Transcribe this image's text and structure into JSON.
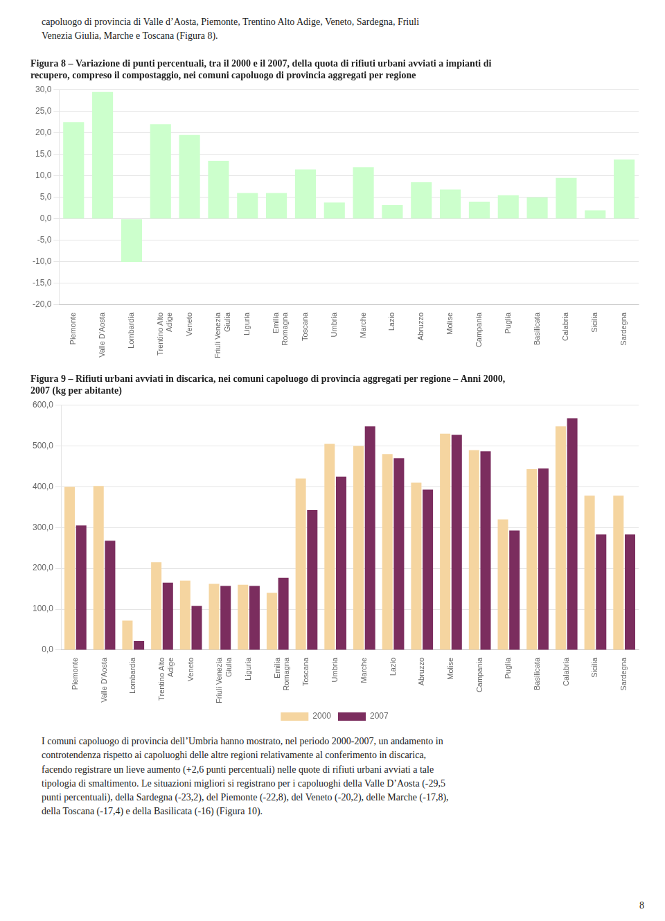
{
  "chart_data": [
    {
      "type": "bar",
      "title": "Figura 8 – Variazione di punti percentuali, tra il 2000 e il 2007, della quota di rifiuti urbani avviati a impianti di\nrecupero, compreso il compostaggio, nei comuni capoluogo di provincia aggregati per regione",
      "categories": [
        "Piemonte",
        "Valle D'Aosta",
        "Lombardia",
        "Trentino Alto\nAdige",
        "Veneto",
        "Friuli Venezia\nGiulia",
        "Liguria",
        "Emilia\nRomagna",
        "Toscana",
        "Umbria",
        "Marche",
        "Lazio",
        "Abruzzo",
        "Molise",
        "Campania",
        "Puglia",
        "Basilicata",
        "Calabria",
        "Sicilia",
        "Sardegna"
      ],
      "values": [
        22.5,
        29.5,
        -10.0,
        22.0,
        19.5,
        13.5,
        6.0,
        6.0,
        11.5,
        3.8,
        12.0,
        3.2,
        8.5,
        6.8,
        4.0,
        5.5,
        5.0,
        9.5,
        2.0,
        13.8
      ],
      "color": "#ccffcc",
      "ylim": [
        -20.0,
        30.0
      ],
      "yticks": [
        {
          "value": -20.0,
          "label": "-20,0"
        },
        {
          "value": -15.0,
          "label": "-15,0"
        },
        {
          "value": -10.0,
          "label": "-10,0"
        },
        {
          "value": -5.0,
          "label": "-5,0"
        },
        {
          "value": 0.0,
          "label": "0,0"
        },
        {
          "value": 5.0,
          "label": "5,0"
        },
        {
          "value": 10.0,
          "label": "10,0"
        },
        {
          "value": 15.0,
          "label": "15,0"
        },
        {
          "value": 20.0,
          "label": "20,0"
        },
        {
          "value": 25.0,
          "label": "25,0"
        },
        {
          "value": 30.0,
          "label": "30,0"
        }
      ],
      "grid": true,
      "annotations": [
        "capoluogo di provincia di Valle d’Aosta, Piemonte, Trentino Alto Adige, Veneto, Sardegna, Friuli\nVenezia Giulia, Marche e Toscana (Figura 8)."
      ]
    },
    {
      "type": "bar",
      "title": "Figura 9 – Rifiuti urbani avviati in discarica, nei comuni capoluogo di provincia aggregati per regione – Anni 2000,\n2007 (kg per abitante)",
      "categories": [
        "Piemonte",
        "Valle D'Aosta",
        "Lombardia",
        "Trentino Alto\nAdige",
        "Veneto",
        "Friuli Venezia\nGiulia",
        "Liguria",
        "Emilia\nRomagna",
        "Toscana",
        "Umbria",
        "Marche",
        "Lazio",
        "Abruzzo",
        "Molise",
        "Campania",
        "Puglia",
        "Basilicata",
        "Calabria",
        "Sicilia",
        "Sardegna"
      ],
      "series": [
        {
          "name": "2000",
          "color": "#f5d5a0",
          "values": [
            400,
            402,
            72,
            215,
            170,
            162,
            160,
            140,
            420,
            505,
            500,
            480,
            410,
            530,
            490,
            320,
            443,
            548,
            378,
            378
          ]
        },
        {
          "name": "2007",
          "color": "#7b2d5e",
          "values": [
            305,
            268,
            22,
            165,
            108,
            157,
            157,
            177,
            343,
            425,
            548,
            470,
            393,
            527,
            487,
            293,
            445,
            568,
            283,
            283
          ]
        }
      ],
      "ylim": [
        0,
        600
      ],
      "yticks": [
        {
          "value": 0,
          "label": "0,0"
        },
        {
          "value": 100,
          "label": "100,0"
        },
        {
          "value": 200,
          "label": "200,0"
        },
        {
          "value": 300,
          "label": "300,0"
        },
        {
          "value": 400,
          "label": "400,0"
        },
        {
          "value": 500,
          "label": "500,0"
        },
        {
          "value": 600,
          "label": "600,0"
        }
      ],
      "grid": true,
      "legend": "bottom",
      "annotations": [
        "I comuni capoluogo di provincia dell’Umbria hanno mostrato, nel periodo 2000-2007, un andamento in\ncontrotendenza rispetto ai capoluoghi delle altre regioni relativamente al conferimento in discarica,\nfacendo registrare un lieve aumento (+2,6 punti percentuali) nelle quote di rifiuti urbani avviati a tale\ntipologia di smaltimento. Le situazioni migliori si registrano per i capoluoghi della Valle D’Aosta (-29,5\npunti percentuali), della Sardegna (-23,2), del Piemonte (-22,8), del Veneto (-20,2), delle Marche (-17,8),\ndella Toscana (-17,4) e della Basilicata (-16) (Figura 10).",
        "8"
      ]
    }
  ]
}
